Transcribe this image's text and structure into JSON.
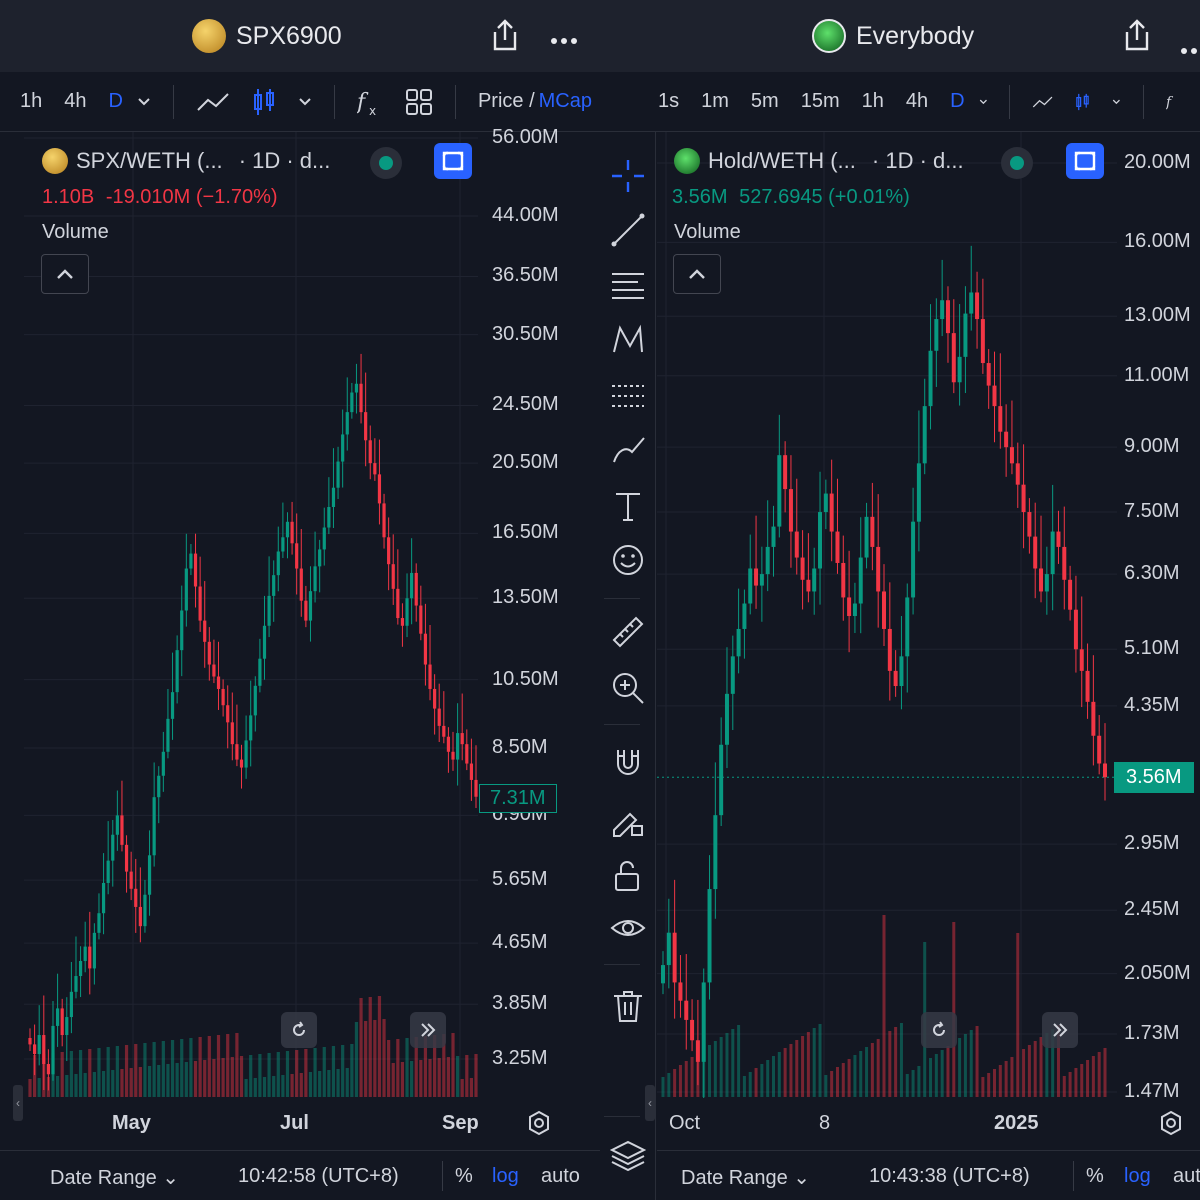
{
  "left": {
    "header": {
      "title": "SPX6900",
      "coin_color": "#d4a23a"
    },
    "toolbar": {
      "intervals": [
        "1h",
        "4h",
        "D"
      ],
      "selected": "D",
      "price_label": "Price /",
      "mcap_label": "MCap"
    },
    "legend": {
      "pair": "SPX/WETH (...",
      "interval": "· 1D · d...",
      "mcap": "1.10B",
      "change": "-19.010M (−1.70%)",
      "volume_label": "Volume"
    },
    "price_axis": [
      "56.00M",
      "44.00M",
      "36.50M",
      "30.50M",
      "24.50M",
      "20.50M",
      "16.50M",
      "13.50M",
      "10.50M",
      "8.50M",
      "6.90M",
      "5.65M",
      "4.65M",
      "3.85M",
      "3.25M"
    ],
    "last_price": "7.31M",
    "time_axis": [
      "May",
      "Jul",
      "Sep"
    ],
    "bottom": {
      "date_range": "Date Range",
      "time": "10:42:58 (UTC+8)",
      "pct": "%",
      "log": "log",
      "auto": "auto"
    },
    "colors": {
      "up": "#089981",
      "down": "#f23645",
      "accent": "#2962ff"
    }
  },
  "right": {
    "header": {
      "title": "Everybody",
      "coin_color": "#1f9d3a"
    },
    "toolbar": {
      "intervals": [
        "1s",
        "1m",
        "5m",
        "15m",
        "1h",
        "4h",
        "D"
      ],
      "selected": "D"
    },
    "legend": {
      "pair": "Hold/WETH (...",
      "interval": "· 1D · d...",
      "mcap": "3.56M",
      "change": "527.6945 (+0.01%)",
      "volume_label": "Volume"
    },
    "price_axis": [
      "20.00M",
      "16.00M",
      "13.00M",
      "11.00M",
      "9.00M",
      "7.50M",
      "6.30M",
      "5.10M",
      "4.35M",
      "2.95M",
      "2.45M",
      "2.050M",
      "1.73M",
      "1.47M"
    ],
    "last_price": "3.56M",
    "time_axis": [
      "Oct",
      "8",
      "2025"
    ],
    "bottom": {
      "date_range": "Date Range",
      "time": "10:43:38 (UTC+8)",
      "pct": "%",
      "log": "log",
      "auto": "aut"
    },
    "drawing_tools": [
      "crosshair-icon",
      "trend-line-icon",
      "fib-icon",
      "pattern-icon",
      "projection-icon",
      "brush-icon",
      "text-icon",
      "emoji-icon",
      "ruler-icon",
      "zoom-in-icon",
      "magnet-icon",
      "lock-drawing-icon",
      "unlock-icon",
      "eye-icon",
      "trash-icon",
      "layers-icon"
    ]
  },
  "chart_data": [
    {
      "type": "candlestick",
      "title": "SPX/WETH (... · 1D · d...",
      "scale": "log",
      "ylim": [
        3000000,
        56000000
      ],
      "xticks": [
        "May",
        "Jul",
        "Sep"
      ],
      "closes_M": [
        3.4,
        3.3,
        3.5,
        3.2,
        3.1,
        3.6,
        3.8,
        3.5,
        3.7,
        4.0,
        4.2,
        4.4,
        4.6,
        4.3,
        4.8,
        5.1,
        5.6,
        6.0,
        6.5,
        6.9,
        6.3,
        5.8,
        5.5,
        5.2,
        4.9,
        5.4,
        6.1,
        7.3,
        7.8,
        8.4,
        9.3,
        10.1,
        11.5,
        13.0,
        14.8,
        15.5,
        14.0,
        12.6,
        11.8,
        11.0,
        10.6,
        10.2,
        9.7,
        9.2,
        8.6,
        8.2,
        8.0,
        8.7,
        9.4,
        10.3,
        11.2,
        12.4,
        13.6,
        14.5,
        15.6,
        16.3,
        17.1,
        16.0,
        14.8,
        13.4,
        12.6,
        13.8,
        14.9,
        15.7,
        16.8,
        17.9,
        19.0,
        20.6,
        22.4,
        24.0,
        25.5,
        26.2,
        24.0,
        22.0,
        20.5,
        19.8,
        18.1,
        16.3,
        15.0,
        13.9,
        12.7,
        12.4,
        13.5,
        14.6,
        13.2,
        12.1,
        11.0,
        10.2,
        9.6,
        9.1,
        8.8,
        8.4,
        8.2,
        8.9,
        8.6,
        8.1,
        7.7,
        7.31
      ],
      "last": "7.31M"
    },
    {
      "type": "candlestick",
      "title": "Hold/WETH (... · 1D · d...",
      "scale": "log",
      "ylim": [
        1400000,
        22000000
      ],
      "xticks": [
        "Oct",
        "8",
        "2025"
      ],
      "closes_M": [
        2.1,
        2.3,
        2.0,
        1.9,
        1.8,
        1.7,
        1.6,
        2.0,
        2.6,
        3.2,
        3.9,
        4.5,
        5.0,
        5.4,
        5.8,
        6.4,
        6.1,
        6.3,
        6.8,
        7.2,
        8.8,
        8.0,
        7.1,
        6.6,
        6.2,
        6.0,
        6.4,
        7.5,
        7.9,
        7.1,
        6.5,
        5.9,
        5.6,
        5.8,
        6.6,
        7.4,
        6.8,
        6.0,
        5.4,
        4.8,
        4.6,
        5.0,
        5.9,
        7.3,
        8.6,
        10.1,
        11.8,
        12.9,
        13.6,
        12.4,
        10.8,
        11.6,
        13.1,
        13.9,
        12.9,
        11.4,
        10.7,
        10.1,
        9.4,
        9.0,
        8.6,
        8.1,
        7.5,
        7.0,
        6.4,
        6.0,
        6.3,
        7.1,
        6.8,
        6.2,
        5.7,
        5.1,
        4.8,
        4.4,
        4.0,
        3.7,
        3.56
      ],
      "last": "3.56M"
    }
  ]
}
